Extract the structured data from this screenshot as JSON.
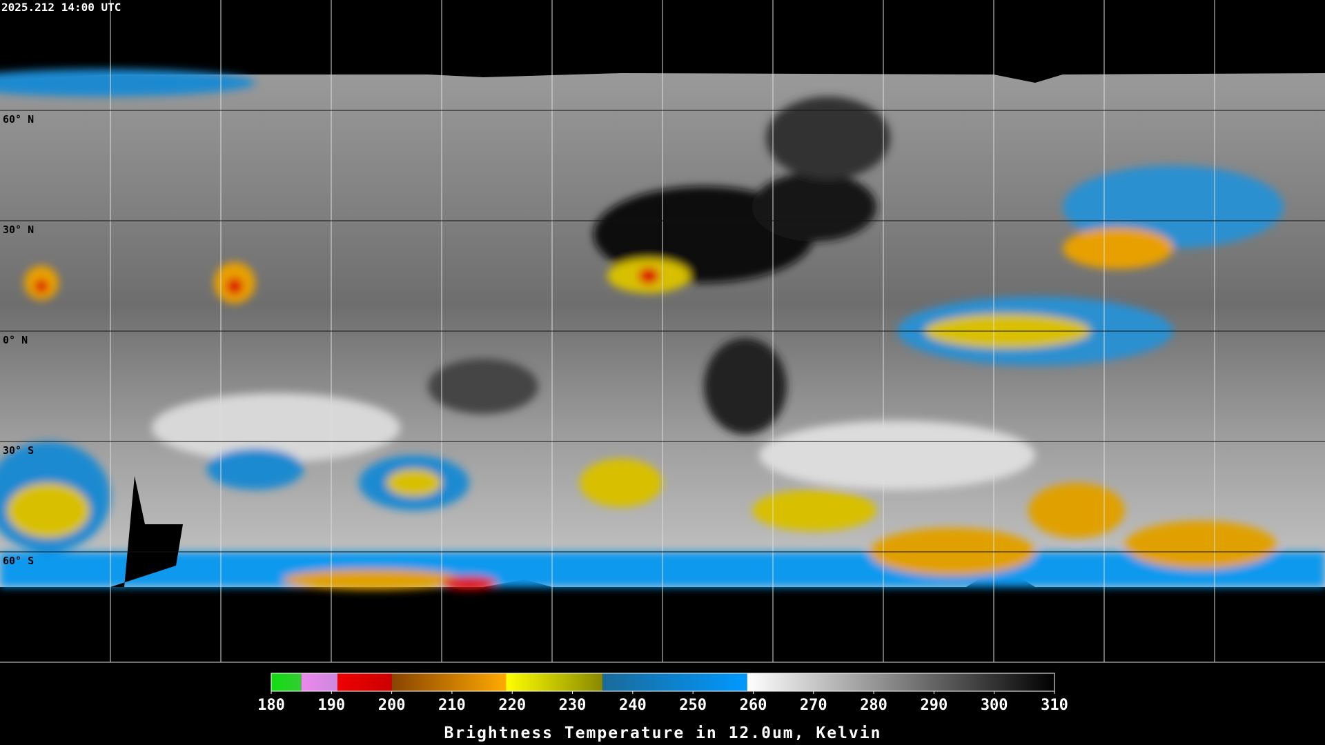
{
  "timestamp": "2025.212 14:00 UTC",
  "lat_labels": [
    "60° N",
    "30° N",
    "0° N",
    "30° S",
    "60° S"
  ],
  "colorbar": {
    "title": "Brightness Temperature in 12.0um, Kelvin",
    "lim": [
      180,
      310
    ],
    "ticks": [
      180,
      190,
      200,
      210,
      220,
      230,
      240,
      250,
      260,
      270,
      280,
      290,
      300,
      310
    ],
    "segments": [
      {
        "from": 180,
        "to": 185,
        "colors": [
          "#11dd11",
          "#33cc33"
        ]
      },
      {
        "from": 185,
        "to": 191,
        "colors": [
          "#ee88ee",
          "#cc88dd"
        ]
      },
      {
        "from": 191,
        "to": 200,
        "colors": [
          "#ee0000",
          "#cc0000"
        ]
      },
      {
        "from": 200,
        "to": 219,
        "colors": [
          "#884400",
          "#ffaa00"
        ]
      },
      {
        "from": 219,
        "to": 235,
        "colors": [
          "#ffff00",
          "#888800"
        ]
      },
      {
        "from": 235,
        "to": 259,
        "colors": [
          "#1a6a9a",
          "#0099ff"
        ]
      },
      {
        "from": 259,
        "to": 310,
        "colors": [
          "#ffffff",
          "#000000"
        ]
      }
    ]
  }
}
